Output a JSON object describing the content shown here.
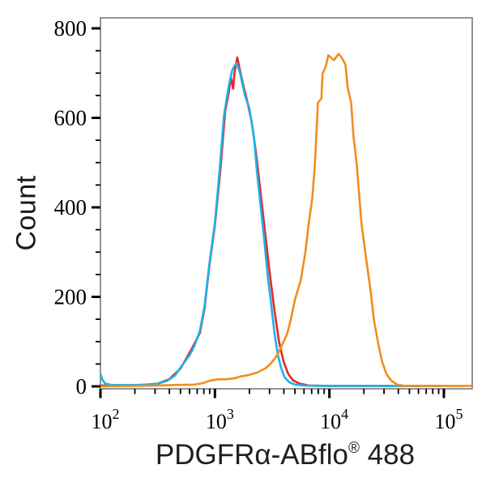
{
  "figure": {
    "background": "#ffffff",
    "frame_color": "#7a7a7a",
    "tick_color": "#000000",
    "text_color": "#1a1a1a"
  },
  "chart_data": {
    "type": "line",
    "subtype": "flow-cytometry-histogram-overlay",
    "title": "",
    "ylabel": "Count",
    "xlabel": "PDGFRα-ABflo® 488",
    "xlabel_parts": {
      "main": "PDGFRα-ABflo",
      "sup": "®",
      "tail": " 488"
    },
    "x_scale": "log10",
    "xlim": [
      100,
      177000
    ],
    "ylim": [
      -9,
      823
    ],
    "grid": false,
    "legend": null,
    "y_ticks": [
      {
        "label": "0",
        "value": 0
      },
      {
        "label": "200",
        "value": 200
      },
      {
        "label": "400",
        "value": 400
      },
      {
        "label": "600",
        "value": 600
      },
      {
        "label": "800",
        "value": 800
      }
    ],
    "y_minor_step": 50,
    "x_ticks": [
      {
        "base": "10",
        "exp": "2",
        "value": 100
      },
      {
        "base": "10",
        "exp": "3",
        "value": 1000
      },
      {
        "base": "10",
        "exp": "4",
        "value": 10000
      },
      {
        "base": "10",
        "exp": "5",
        "value": 100000
      }
    ],
    "x_minor_ticks": [
      200,
      300,
      400,
      500,
      600,
      700,
      800,
      900,
      2000,
      3000,
      4000,
      5000,
      6000,
      7000,
      8000,
      9000,
      20000,
      30000,
      40000,
      50000,
      60000,
      70000,
      80000,
      90000
    ],
    "series": [
      {
        "name": "red-trace",
        "color": "#e8262a",
        "points": [
          [
            100,
            2
          ],
          [
            200,
            2
          ],
          [
            316,
            6
          ],
          [
            398,
            16
          ],
          [
            501,
            40
          ],
          [
            631,
            85
          ],
          [
            741,
            120
          ],
          [
            813,
            175
          ],
          [
            891,
            265
          ],
          [
            1000,
            360
          ],
          [
            1122,
            490
          ],
          [
            1230,
            615
          ],
          [
            1318,
            655
          ],
          [
            1380,
            690
          ],
          [
            1445,
            665
          ],
          [
            1479,
            700
          ],
          [
            1567,
            735
          ],
          [
            1660,
            705
          ],
          [
            1778,
            670
          ],
          [
            1905,
            640
          ],
          [
            2089,
            592
          ],
          [
            2291,
            520
          ],
          [
            2512,
            430
          ],
          [
            2754,
            340
          ],
          [
            3020,
            250
          ],
          [
            3311,
            170
          ],
          [
            3631,
            100
          ],
          [
            3981,
            55
          ],
          [
            4365,
            28
          ],
          [
            4786,
            14
          ],
          [
            5495,
            6
          ],
          [
            6607,
            2
          ],
          [
            10000,
            1
          ],
          [
            63096,
            1
          ]
        ]
      },
      {
        "name": "blue-trace",
        "color": "#1cb2e8",
        "points": [
          [
            100,
            28
          ],
          [
            104,
            15
          ],
          [
            110,
            6
          ],
          [
            126,
            3
          ],
          [
            200,
            3
          ],
          [
            251,
            4
          ],
          [
            316,
            6
          ],
          [
            380,
            12
          ],
          [
            447,
            24
          ],
          [
            513,
            46
          ],
          [
            603,
            70
          ],
          [
            661,
            90
          ],
          [
            741,
            125
          ],
          [
            813,
            180
          ],
          [
            891,
            270
          ],
          [
            1000,
            365
          ],
          [
            1096,
            480
          ],
          [
            1202,
            606
          ],
          [
            1318,
            670
          ],
          [
            1413,
            706
          ],
          [
            1479,
            716
          ],
          [
            1549,
            722
          ],
          [
            1660,
            700
          ],
          [
            1820,
            652
          ],
          [
            1995,
            622
          ],
          [
            2188,
            560
          ],
          [
            2344,
            473
          ],
          [
            2512,
            400
          ],
          [
            2692,
            330
          ],
          [
            2884,
            250
          ],
          [
            3090,
            186
          ],
          [
            3311,
            120
          ],
          [
            3548,
            70
          ],
          [
            3802,
            40
          ],
          [
            4074,
            20
          ],
          [
            4467,
            9
          ],
          [
            5012,
            4
          ],
          [
            6026,
            2
          ],
          [
            7943,
            1
          ],
          [
            15849,
            1
          ],
          [
            92000,
            1
          ]
        ]
      },
      {
        "name": "orange-trace",
        "color": "#f28c21",
        "points": [
          [
            100,
            0
          ],
          [
            200,
            1
          ],
          [
            316,
            2
          ],
          [
            447,
            3
          ],
          [
            661,
            4
          ],
          [
            776,
            7
          ],
          [
            912,
            13
          ],
          [
            1072,
            16
          ],
          [
            1259,
            16
          ],
          [
            1479,
            18
          ],
          [
            1660,
            22
          ],
          [
            1950,
            25
          ],
          [
            2344,
            31
          ],
          [
            2754,
            40
          ],
          [
            3020,
            49
          ],
          [
            3388,
            64
          ],
          [
            3548,
            73
          ],
          [
            3981,
            100
          ],
          [
            4266,
            117
          ],
          [
            4571,
            146
          ],
          [
            5012,
            195
          ],
          [
            5623,
            237
          ],
          [
            6166,
            300
          ],
          [
            6607,
            365
          ],
          [
            7079,
            420
          ],
          [
            7413,
            484
          ],
          [
            7586,
            530
          ],
          [
            7943,
            634
          ],
          [
            8511,
            643
          ],
          [
            8710,
            698
          ],
          [
            9333,
            716
          ],
          [
            9772,
            740
          ],
          [
            10965,
            729
          ],
          [
            12023,
            743
          ],
          [
            12882,
            734
          ],
          [
            13804,
            719
          ],
          [
            14454,
            667
          ],
          [
            15488,
            634
          ],
          [
            16218,
            561
          ],
          [
            17378,
            493
          ],
          [
            18197,
            429
          ],
          [
            19055,
            365
          ],
          [
            20893,
            287
          ],
          [
            22909,
            214
          ],
          [
            24547,
            146
          ],
          [
            26915,
            91
          ],
          [
            28840,
            55
          ],
          [
            31623,
            27
          ],
          [
            34674,
            13
          ],
          [
            38905,
            4
          ],
          [
            45709,
            1
          ],
          [
            100000,
            1
          ],
          [
            173780,
            1
          ]
        ]
      }
    ]
  }
}
